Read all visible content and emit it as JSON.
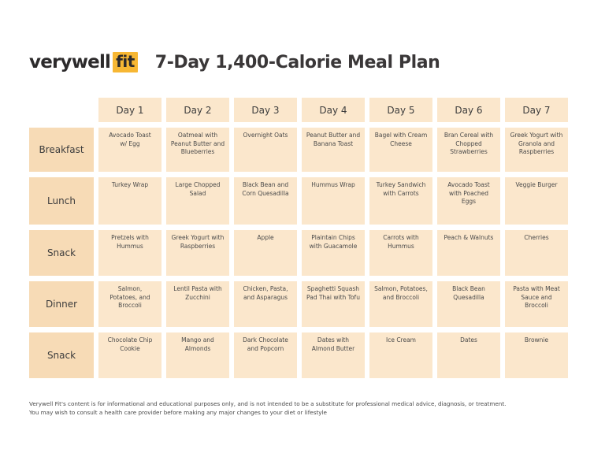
{
  "brand": {
    "word": "verywell",
    "box": "fit"
  },
  "title": "7-Day 1,400-Calorie Meal Plan",
  "days": [
    "Day 1",
    "Day 2",
    "Day 3",
    "Day 4",
    "Day 5",
    "Day 6",
    "Day 7"
  ],
  "meals": [
    {
      "label": "Breakfast",
      "items": [
        "Avocado Toast\nw/ Egg",
        "Oatmeal with\nPeanut Butter and\nBlueberries",
        "Overnight Oats",
        "Peanut Butter and\nBanana Toast",
        "Bagel with Cream\nCheese",
        "Bran Cereal with\nChopped\nStrawberries",
        "Greek Yogurt with\nGranola and\nRaspberries"
      ]
    },
    {
      "label": "Lunch",
      "items": [
        "Turkey Wrap",
        "Large Chopped\nSalad",
        "Black Bean and\nCorn Quesadilla",
        "Hummus Wrap",
        "Turkey Sandwich\nwith Carrots",
        "Avocado Toast\nwith Poached\nEggs",
        "Veggie Burger"
      ]
    },
    {
      "label": "Snack",
      "items": [
        "Pretzels with\nHummus",
        "Greek Yogurt with\nRaspberries",
        "Apple",
        "Plaintain Chips\nwith Guacamole",
        "Carrots with\nHummus",
        "Peach & Walnuts",
        "Cherries"
      ]
    },
    {
      "label": "Dinner",
      "items": [
        "Salmon,\nPotatoes, and\nBroccoli",
        "Lentil Pasta with\nZucchini",
        "Chicken, Pasta,\nand Asparagus",
        "Spaghetti Squash\nPad Thai with Tofu",
        "Salmon, Potatoes,\nand Broccoli",
        "Black Bean\nQuesadilla",
        "Pasta with Meat\nSauce and\nBroccoli"
      ]
    },
    {
      "label": "Snack",
      "items": [
        "Chocolate Chip\nCookie",
        "Mango and\nAlmonds",
        "Dark Chocolate\nand Popcorn",
        "Dates with\nAlmond Butter",
        "Ice Cream",
        "Dates",
        "Brownie"
      ]
    }
  ],
  "disclaimer": [
    "Verywell Fit's content is for informational and educational purposes only, and is not intended to be a substitute for professional medical advice, diagnosis, or treatment.",
    "You may wish to consult a health care provider before making any major changes to your diet or lifestyle"
  ],
  "colors": {
    "accent": "#f7b733",
    "cell": "#fbe7cc",
    "row_header": "#f7dbb6"
  }
}
